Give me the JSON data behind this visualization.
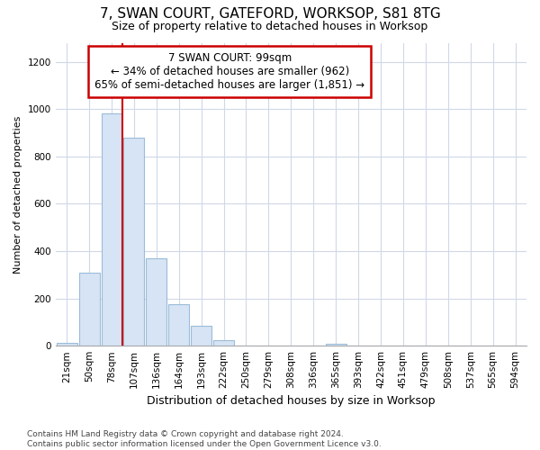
{
  "title": "7, SWAN COURT, GATEFORD, WORKSOP, S81 8TG",
  "subtitle": "Size of property relative to detached houses in Worksop",
  "xlabel": "Distribution of detached houses by size in Worksop",
  "ylabel": "Number of detached properties",
  "footer": "Contains HM Land Registry data © Crown copyright and database right 2024.\nContains public sector information licensed under the Open Government Licence v3.0.",
  "bin_labels": [
    "21sqm",
    "50sqm",
    "78sqm",
    "107sqm",
    "136sqm",
    "164sqm",
    "193sqm",
    "222sqm",
    "250sqm",
    "279sqm",
    "308sqm",
    "336sqm",
    "365sqm",
    "393sqm",
    "422sqm",
    "451sqm",
    "479sqm",
    "508sqm",
    "537sqm",
    "565sqm",
    "594sqm"
  ],
  "bar_values": [
    12,
    310,
    980,
    880,
    370,
    175,
    85,
    25,
    0,
    0,
    0,
    0,
    10,
    0,
    0,
    0,
    0,
    0,
    0,
    0,
    0
  ],
  "bar_color": "#d6e4f5",
  "bar_edge_color": "#9bbcd8",
  "ylim": [
    0,
    1280
  ],
  "yticks": [
    0,
    200,
    400,
    600,
    800,
    1000,
    1200
  ],
  "property_line_x": 3.0,
  "property_line_color": "#cc0000",
  "annotation_text": "7 SWAN COURT: 99sqm\n← 34% of detached houses are smaller (962)\n65% of semi-detached houses are larger (1,851) →",
  "annotation_box_facecolor": "#ffffff",
  "annotation_box_edgecolor": "#cc0000",
  "background_color": "#ffffff",
  "grid_color": "#d0d8e8",
  "title_fontsize": 11,
  "subtitle_fontsize": 9,
  "annotation_fontsize": 8.5,
  "ylabel_fontsize": 8,
  "xlabel_fontsize": 9,
  "tick_fontsize": 7.5,
  "footer_fontsize": 6.5
}
